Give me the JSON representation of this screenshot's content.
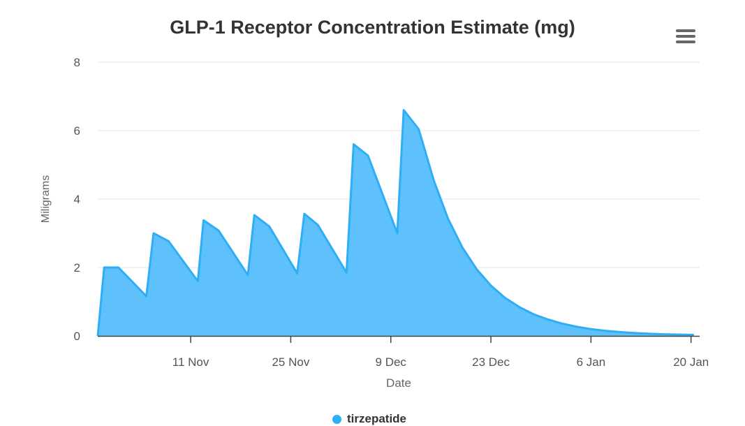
{
  "chart_data": {
    "type": "area",
    "title": "GLP-1 Receptor Concentration Estimate (mg)",
    "xlabel": "Date",
    "ylabel": "Miligrams",
    "ylim": [
      0,
      8
    ],
    "yticks": [
      0,
      2,
      4,
      6,
      8
    ],
    "xlim_days": [
      0,
      84.2
    ],
    "xticks": [
      {
        "day": 13,
        "label": "11 Nov"
      },
      {
        "day": 27,
        "label": "25 Nov"
      },
      {
        "day": 41,
        "label": "9 Dec"
      },
      {
        "day": 55,
        "label": "23 Dec"
      },
      {
        "day": 69,
        "label": "6 Jan"
      },
      {
        "day": 83,
        "label": "20 Jan"
      }
    ],
    "grid": true,
    "legend_position": "bottom",
    "series": [
      {
        "name": "tirzepatide",
        "color": "#2eaef7",
        "fill": "#5fc1fb",
        "points": [
          [
            0,
            0
          ],
          [
            0.9,
            2.0
          ],
          [
            2.9,
            2.0
          ],
          [
            6.8,
            1.16
          ],
          [
            7.8,
            3.0
          ],
          [
            9.9,
            2.77
          ],
          [
            14,
            1.6
          ],
          [
            14.8,
            3.38
          ],
          [
            16.9,
            3.08
          ],
          [
            21,
            1.78
          ],
          [
            21.9,
            3.53
          ],
          [
            24,
            3.2
          ],
          [
            27.9,
            1.83
          ],
          [
            28.9,
            3.57
          ],
          [
            30.8,
            3.24
          ],
          [
            34.8,
            1.85
          ],
          [
            35.8,
            5.6
          ],
          [
            37.8,
            5.27
          ],
          [
            41.9,
            3.0
          ],
          [
            42.8,
            6.6
          ],
          [
            44.9,
            6.04
          ],
          [
            47,
            4.55
          ],
          [
            49,
            3.43
          ],
          [
            51,
            2.59
          ],
          [
            53,
            1.95
          ],
          [
            55,
            1.47
          ],
          [
            57,
            1.11
          ],
          [
            59,
            0.84
          ],
          [
            61,
            0.63
          ],
          [
            63,
            0.48
          ],
          [
            65,
            0.36
          ],
          [
            67,
            0.27
          ],
          [
            69,
            0.2
          ],
          [
            71,
            0.15
          ],
          [
            73,
            0.115
          ],
          [
            75,
            0.087
          ],
          [
            77,
            0.066
          ],
          [
            79,
            0.05
          ],
          [
            81,
            0.04
          ],
          [
            83.4,
            0.03
          ]
        ]
      }
    ]
  }
}
